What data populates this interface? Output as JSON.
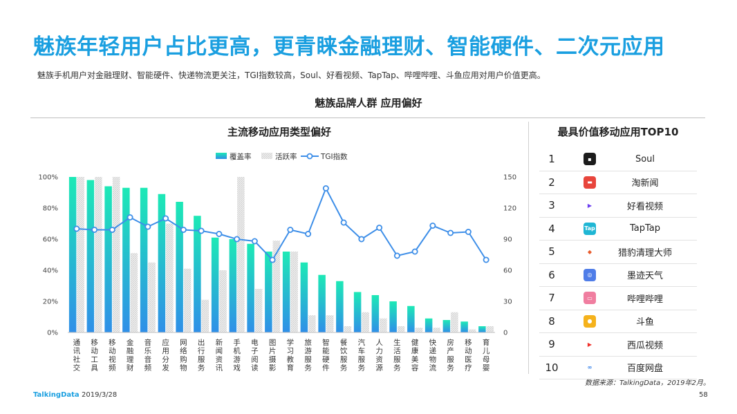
{
  "header": {
    "title": "魅族年轻用户占比更高，更青睐金融理财、智能硬件、二次元应用",
    "subtitle": "魅族手机用户对金融理财、智能硬件、快递物流更关注，TGI指数较高，Soul、好看视频、TapTap、哔哩哔哩、斗鱼应用对用户价值更高。",
    "section_title": "魅族品牌人群  应用偏好"
  },
  "colors": {
    "title": "#1a9fe0",
    "bar_top": "#1de9b6",
    "bar_bottom": "#2f8fe8",
    "tgi_line": "#3d8ee8",
    "active_bar": "#dcdcdc"
  },
  "chart_data": {
    "type": "bar",
    "title": "主流移动应用类型偏好",
    "categories": [
      "通讯社交",
      "移动工具",
      "移动视频",
      "金融理财",
      "音乐音频",
      "应用分发",
      "网络购物",
      "出行服务",
      "新闻资讯",
      "手机游戏",
      "电子阅读",
      "图片摄影",
      "学习教育",
      "旅游服务",
      "智能硬件",
      "餐饮服务",
      "汽车服务",
      "人力资源",
      "生活服务",
      "健康美容",
      "快递物流",
      "房产服务",
      "移动医疗",
      "育儿母婴"
    ],
    "series": [
      {
        "name": "覆盖率",
        "axis": "left",
        "values": [
          100,
          98,
          94,
          93,
          93,
          89,
          84,
          75,
          61,
          60,
          57,
          52,
          52,
          45,
          37,
          33,
          26,
          24,
          20,
          17,
          9,
          8,
          7,
          4
        ]
      },
      {
        "name": "活跃率",
        "axis": "left",
        "values": [
          100,
          100,
          100,
          51,
          45,
          70,
          41,
          21,
          40,
          100,
          28,
          59,
          52,
          11,
          11,
          4,
          13,
          9,
          4,
          3,
          3,
          13,
          2,
          4
        ]
      },
      {
        "name": "TGI指数",
        "axis": "right",
        "type": "line",
        "values": [
          100,
          99,
          99,
          111,
          102,
          110,
          99,
          98,
          95,
          90,
          88,
          70,
          99,
          95,
          139,
          106,
          90,
          101,
          74,
          78,
          103,
          96,
          97,
          70
        ]
      }
    ],
    "left_axis": {
      "ticks": [
        "0%",
        "20%",
        "40%",
        "60%",
        "80%",
        "100%"
      ],
      "ylim": [
        0,
        100
      ]
    },
    "right_axis": {
      "ticks": [
        "0",
        "30",
        "60",
        "90",
        "120",
        "150"
      ],
      "ylim": [
        0,
        150
      ]
    },
    "legend": [
      "覆盖率",
      "活跃率",
      "TGI指数"
    ]
  },
  "top10": {
    "title": "最具价值移动应用TOP10",
    "items": [
      {
        "rank": "1",
        "name": "Soul",
        "icon": "soul-icon",
        "color": "#1c1c1c"
      },
      {
        "rank": "2",
        "name": "淘新闻",
        "icon": "taoxinwen-icon",
        "color": "#e8453c"
      },
      {
        "rank": "3",
        "name": "好看视频",
        "icon": "haokan-icon",
        "color": "#ffffff"
      },
      {
        "rank": "4",
        "name": "TapTap",
        "icon": "taptap-icon",
        "color": "#1fb6d4"
      },
      {
        "rank": "5",
        "name": "猎豹清理大师",
        "icon": "cleanmaster-icon",
        "color": "#ffffff"
      },
      {
        "rank": "6",
        "name": "墨迹天气",
        "icon": "moji-icon",
        "color": "#4f7de8"
      },
      {
        "rank": "7",
        "name": "哔哩哔哩",
        "icon": "bilibili-icon",
        "color": "#f07ea0"
      },
      {
        "rank": "8",
        "name": "斗鱼",
        "icon": "douyu-icon",
        "color": "#f5b21c"
      },
      {
        "rank": "9",
        "name": "西瓜视频",
        "icon": "xigua-icon",
        "color": "#ffffff"
      },
      {
        "rank": "10",
        "name": "百度网盘",
        "icon": "baidupan-icon",
        "color": "#ffffff"
      }
    ]
  },
  "footer": {
    "source": "数据来源：TalkingData，2019年2月。",
    "logo": "TalkingData",
    "date": "2019/3/28",
    "page": "58"
  }
}
